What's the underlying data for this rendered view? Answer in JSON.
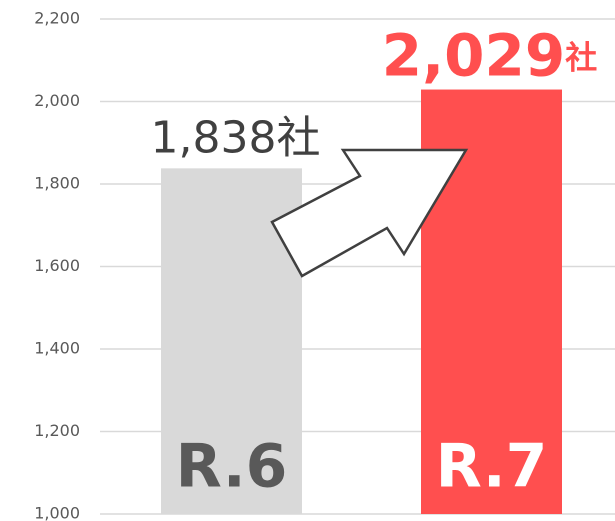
{
  "chart_data": {
    "type": "bar",
    "categories": [
      "R.6",
      "R.7"
    ],
    "values": [
      1838,
      2029
    ],
    "value_labels": [
      "1,838社",
      "2,029社"
    ],
    "colors": [
      "#d9d9d9",
      "#ff4f4f"
    ],
    "ylim": [
      1000,
      2200
    ],
    "yticks": [
      {
        "value": 1000,
        "label": "1,000"
      },
      {
        "value": 1200,
        "label": "1,200"
      },
      {
        "value": 1400,
        "label": "1,400"
      },
      {
        "value": 1600,
        "label": "1,600"
      },
      {
        "value": 1800,
        "label": "1,800"
      },
      {
        "value": 2000,
        "label": "2,000"
      },
      {
        "value": 2200,
        "label": "2,200"
      }
    ],
    "grid": true
  }
}
